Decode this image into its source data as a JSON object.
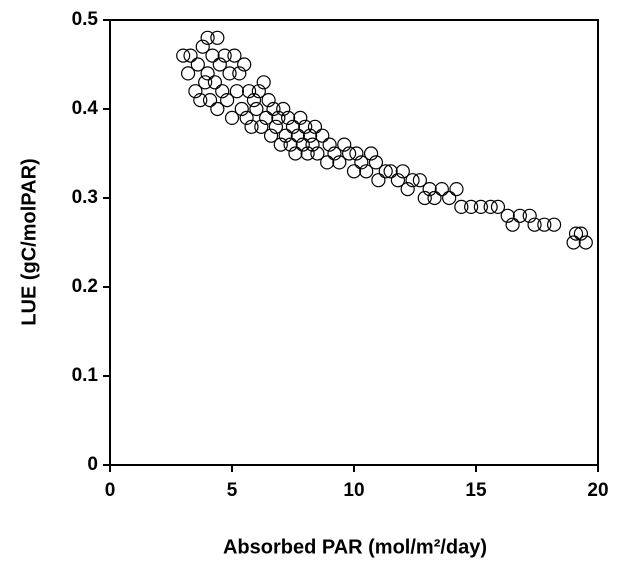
{
  "chart_data": {
    "type": "scatter",
    "x_label": "Absorbed PAR (mol/m²/day)",
    "y_label": "LUE (gC/molPAR)",
    "xlim": [
      0,
      20
    ],
    "ylim": [
      0,
      0.5
    ],
    "xticks": [
      0,
      5,
      10,
      15,
      20
    ],
    "yticks": [
      0,
      0.1,
      0.2,
      0.3,
      0.4,
      0.5
    ],
    "marker": "open-circle",
    "color": "#000000",
    "x": [
      3.0,
      3.2,
      3.3,
      3.5,
      3.6,
      3.7,
      3.8,
      3.9,
      4.0,
      4.0,
      4.1,
      4.2,
      4.3,
      4.4,
      4.4,
      4.5,
      4.6,
      4.7,
      4.8,
      4.9,
      5.0,
      5.1,
      5.2,
      5.3,
      5.4,
      5.5,
      5.6,
      5.7,
      5.8,
      5.9,
      6.0,
      6.1,
      6.2,
      6.3,
      6.4,
      6.5,
      6.6,
      6.7,
      6.8,
      6.9,
      7.0,
      7.1,
      7.2,
      7.3,
      7.4,
      7.5,
      7.6,
      7.7,
      7.8,
      7.9,
      8.0,
      8.1,
      8.2,
      8.3,
      8.4,
      8.5,
      8.7,
      8.9,
      9.0,
      9.2,
      9.4,
      9.6,
      9.8,
      10.0,
      10.1,
      10.3,
      10.5,
      10.7,
      10.9,
      11.0,
      11.3,
      11.5,
      11.8,
      12.0,
      12.2,
      12.4,
      12.7,
      12.9,
      13.1,
      13.3,
      13.6,
      13.9,
      14.2,
      14.4,
      14.8,
      15.2,
      15.6,
      15.9,
      16.3,
      16.5,
      16.8,
      17.2,
      17.4,
      17.8,
      18.2,
      19.0,
      19.1,
      19.3,
      19.5
    ],
    "y": [
      0.46,
      0.44,
      0.46,
      0.42,
      0.45,
      0.41,
      0.47,
      0.43,
      0.48,
      0.44,
      0.41,
      0.46,
      0.43,
      0.48,
      0.4,
      0.45,
      0.42,
      0.46,
      0.41,
      0.44,
      0.39,
      0.46,
      0.42,
      0.44,
      0.4,
      0.45,
      0.39,
      0.42,
      0.38,
      0.41,
      0.4,
      0.42,
      0.38,
      0.43,
      0.39,
      0.41,
      0.37,
      0.4,
      0.38,
      0.39,
      0.36,
      0.4,
      0.37,
      0.39,
      0.36,
      0.38,
      0.35,
      0.37,
      0.39,
      0.36,
      0.38,
      0.35,
      0.37,
      0.36,
      0.38,
      0.35,
      0.37,
      0.34,
      0.36,
      0.35,
      0.34,
      0.36,
      0.35,
      0.33,
      0.35,
      0.34,
      0.33,
      0.35,
      0.34,
      0.32,
      0.33,
      0.33,
      0.32,
      0.33,
      0.31,
      0.32,
      0.32,
      0.3,
      0.31,
      0.3,
      0.31,
      0.3,
      0.31,
      0.29,
      0.29,
      0.29,
      0.29,
      0.29,
      0.28,
      0.27,
      0.28,
      0.28,
      0.27,
      0.27,
      0.27,
      0.25,
      0.26,
      0.26,
      0.25
    ]
  }
}
